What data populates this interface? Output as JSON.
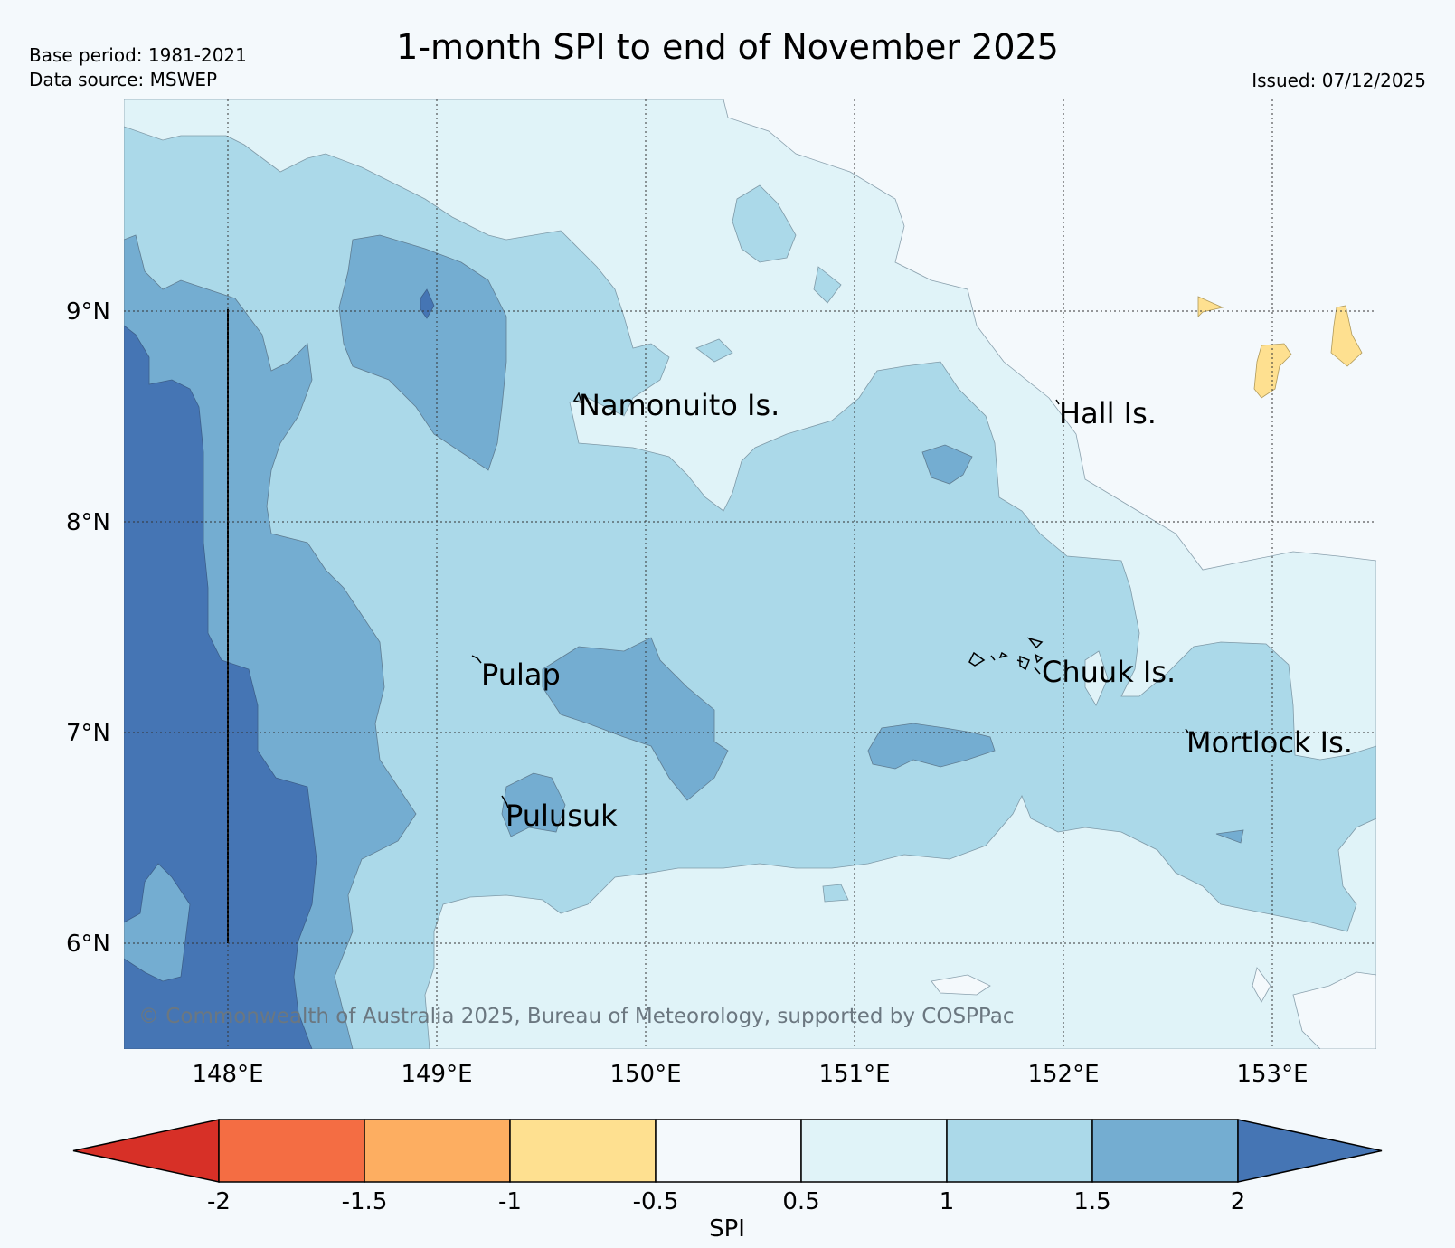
{
  "header": {
    "title": "1-month SPI to end of November 2025",
    "base_period": "Base period: 1981-2021",
    "data_source": "Data source: MSWEP",
    "issued": "Issued: 07/12/2025"
  },
  "map": {
    "lat_labels": [
      "9°N",
      "8°N",
      "7°N",
      "6°N"
    ],
    "lon_labels": [
      "148°E",
      "149°E",
      "150°E",
      "151°E",
      "152°E",
      "153°E"
    ],
    "places": [
      "Namonuito Is.",
      "Hall Is.",
      "Pulap",
      "Chuuk Is.",
      "Mortlock Is.",
      "Pulusuk"
    ],
    "copyright": "© Commonwealth of Australia 2025, Bureau of Meteorology, supported by COSPPac",
    "colors": {
      "very_wet": "#4575b4",
      "wet": "#74add1",
      "mod_wet": "#abd9e9",
      "slight_wet": "#e0f3f8",
      "normal": "#f4f9fc",
      "slight_dry": "#fee090",
      "mod_dry": "#fdae61",
      "dry": "#f46d43",
      "very_dry": "#d73027"
    }
  },
  "colorbar": {
    "label": "SPI",
    "ticks": [
      "-2",
      "-1.5",
      "-1",
      "-0.5",
      "0.5",
      "1",
      "1.5",
      "2"
    ],
    "colors": [
      "#d73027",
      "#f46d43",
      "#fdae61",
      "#fee090",
      "#f4f9fc",
      "#e0f3f8",
      "#abd9e9",
      "#74add1",
      "#4575b4"
    ]
  }
}
